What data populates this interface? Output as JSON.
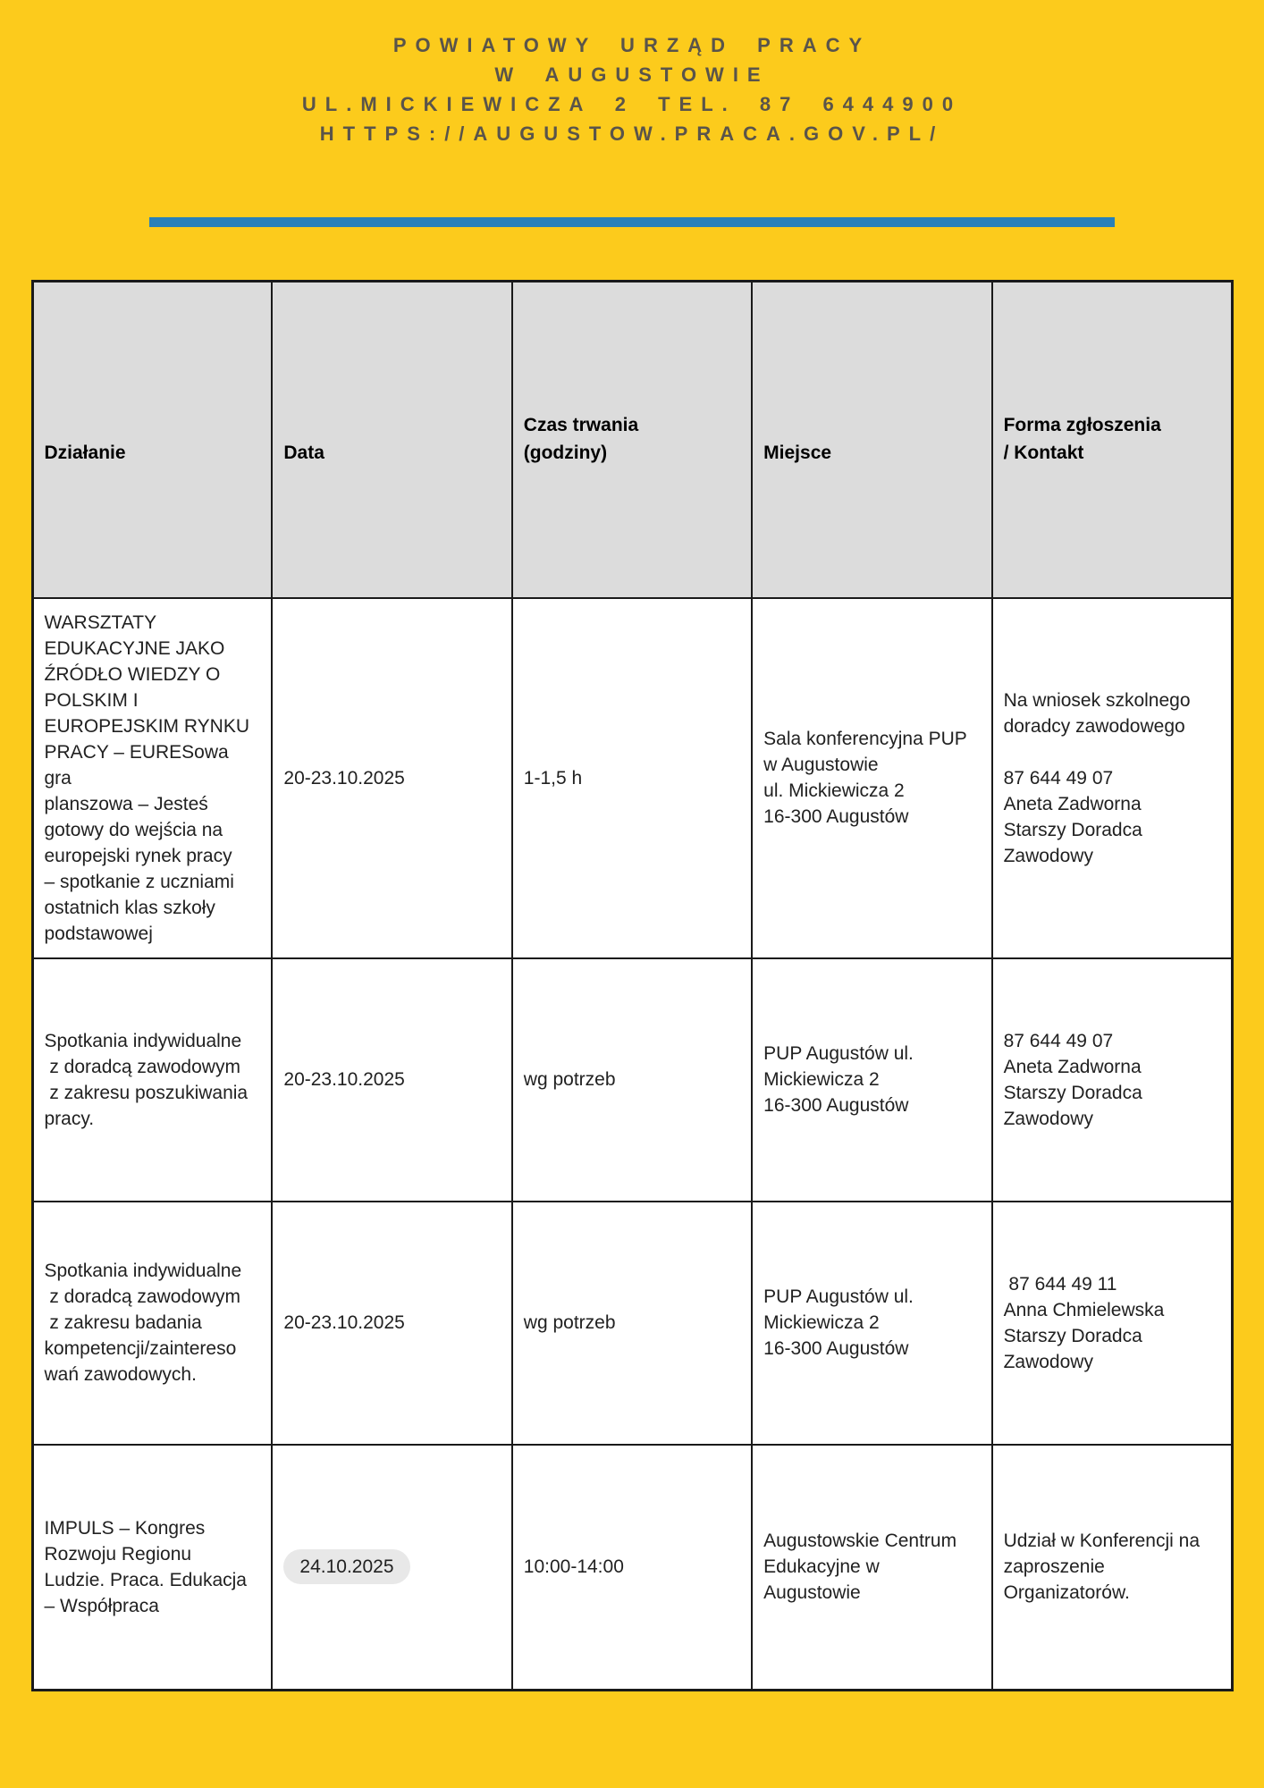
{
  "page": {
    "background_color": "#FCCB1C",
    "accent_blue": "#2980B9",
    "letterhead_text_color": "#5A544A"
  },
  "letterhead": {
    "lines": [
      "POWIATOWY URZĄD PRACY",
      "W AUGUSTOWIE",
      "UL.MICKIEWICZA 2 TEL. 87 6444900",
      "HTTPS://AUGUSTOW.PRACA.GOV.PL/"
    ]
  },
  "table": {
    "header_bg": "#DCDCDC",
    "columns": [
      "Działanie",
      "Data",
      "Czas trwania\n(godziny)",
      "Miejsce",
      "Forma zgłoszenia\n/ Kontakt"
    ],
    "rows": [
      {
        "cells": [
          "WARSZTATY\nEDUKACYJNE JAKO\nŹRÓDŁO WIEDZY O\nPOLSKIM I\nEUROPEJSKIM RYNKU\nPRACY – EURESowa gra\nplanszowa – Jesteś\ngotowy do wejścia na\neuropejski rynek pracy\n– spotkanie z uczniami\nostatnich klas szkoły\npodstawowej",
          "20-23.10.2025",
          "1-1,5 h",
          "Sala konferencyjna PUP\nw Augustowie\nul. Mickiewicza 2\n16-300 Augustów",
          "Na wniosek szkolnego\ndoradcy zawodowego\n\n87 644 49 07\nAneta Zadworna\nStarszy Doradca\nZawodowy"
        ]
      },
      {
        "cells": [
          "Spotkania indywidualne\n z doradcą zawodowym\n z zakresu poszukiwania\npracy.",
          "20-23.10.2025",
          "wg potrzeb",
          "PUP Augustów ul.\nMickiewicza 2\n16-300 Augustów",
          "87 644 49 07\nAneta Zadworna\nStarszy Doradca\nZawodowy"
        ]
      },
      {
        "cells": [
          "Spotkania indywidualne\n z doradcą zawodowym\n z zakresu badania\nkompetencji/zaintereso\nwań zawodowych.",
          "20-23.10.2025",
          "wg potrzeb",
          "PUP Augustów ul.\nMickiewicza 2\n16-300 Augustów",
          " 87 644 49 11\nAnna Chmielewska\nStarszy Doradca\nZawodowy"
        ]
      },
      {
        "cells": [
          "IMPULS – Kongres\nRozwoju Regionu\nLudzie. Praca. Edukacja\n– Współpraca",
          "24.10.2025",
          "10:00-14:00",
          "Augustowskie Centrum\nEdukacyjne w\nAugustowie",
          "Udział w Konferencji na\nzaproszenie\nOrganizatorów."
        ],
        "date_highlighted": true
      }
    ]
  }
}
